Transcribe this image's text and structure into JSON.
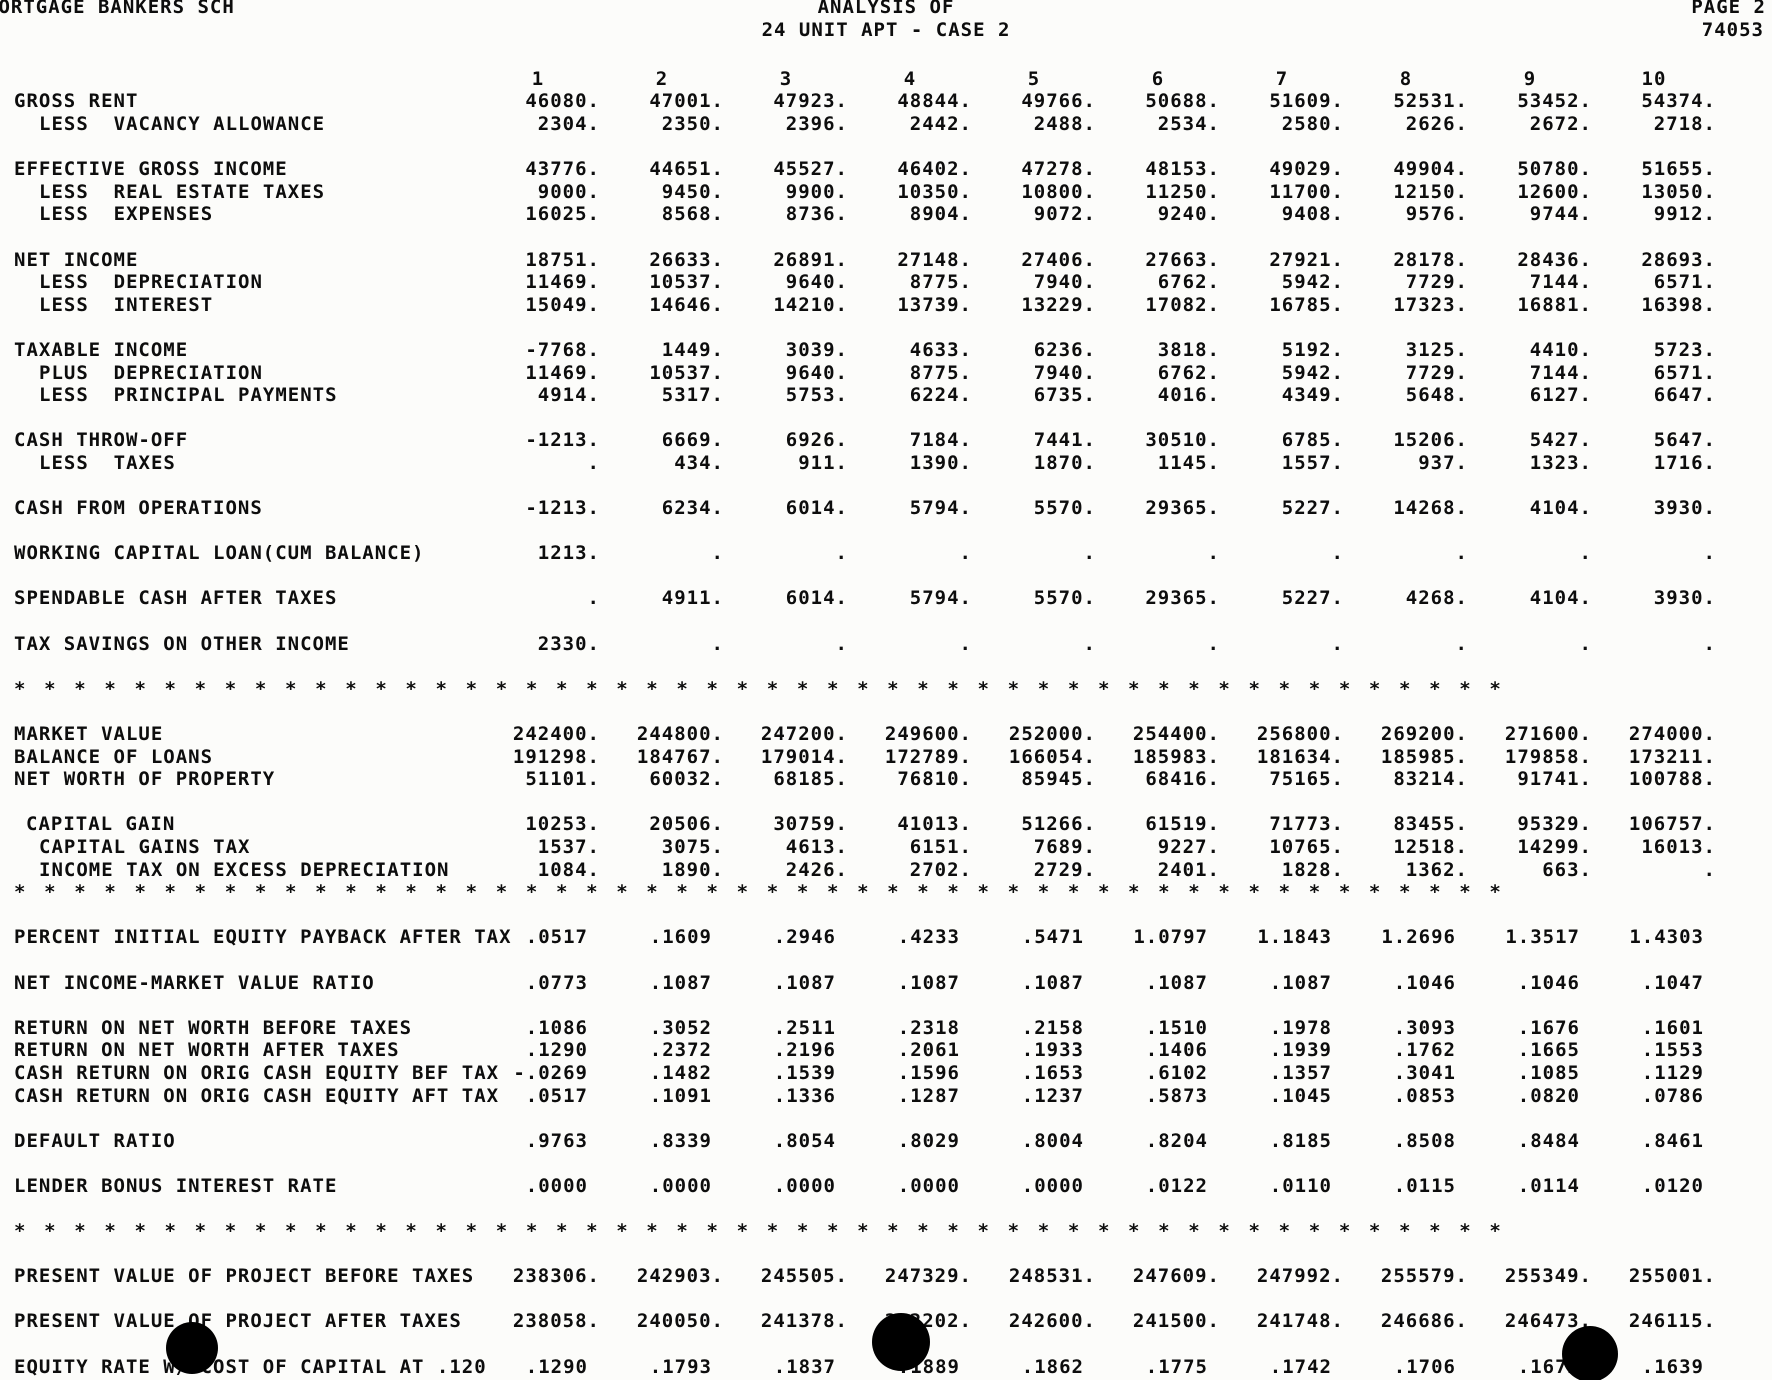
{
  "theme": {
    "paper": "#fcfcfa",
    "ink": "#0d0d0d",
    "blot": "#000000"
  },
  "header": {
    "organization": "MORTGAGE BANKERS SCH",
    "report_title": "ANALYSIS OF",
    "report_subtitle": "24 UNIT APT - CASE 2",
    "page_label": "PAGE 2",
    "job_number": "74053"
  },
  "report": {
    "columns": [
      "1",
      "2",
      "3",
      "4",
      "5",
      "6",
      "7",
      "8",
      "9",
      "10"
    ],
    "separator": {
      "glyph": "*",
      "count": 50
    },
    "rows": [
      {
        "type": "columns"
      },
      {
        "label": "GROSS RENT",
        "indent": 0,
        "values": [
          "46080.",
          "47001.",
          "47923.",
          "48844.",
          "49766.",
          "50688.",
          "51609.",
          "52531.",
          "53452.",
          "54374."
        ]
      },
      {
        "label": "LESS  VACANCY ALLOWANCE",
        "indent": 2,
        "values": [
          "2304.",
          "2350.",
          "2396.",
          "2442.",
          "2488.",
          "2534.",
          "2580.",
          "2626.",
          "2672.",
          "2718."
        ]
      },
      {
        "type": "blank"
      },
      {
        "label": "EFFECTIVE GROSS INCOME",
        "indent": 0,
        "values": [
          "43776.",
          "44651.",
          "45527.",
          "46402.",
          "47278.",
          "48153.",
          "49029.",
          "49904.",
          "50780.",
          "51655."
        ]
      },
      {
        "label": "LESS  REAL ESTATE TAXES",
        "indent": 2,
        "values": [
          "9000.",
          "9450.",
          "9900.",
          "10350.",
          "10800.",
          "11250.",
          "11700.",
          "12150.",
          "12600.",
          "13050."
        ]
      },
      {
        "label": "LESS  EXPENSES",
        "indent": 2,
        "values": [
          "16025.",
          "8568.",
          "8736.",
          "8904.",
          "9072.",
          "9240.",
          "9408.",
          "9576.",
          "9744.",
          "9912."
        ]
      },
      {
        "type": "blank"
      },
      {
        "label": "NET INCOME",
        "indent": 0,
        "values": [
          "18751.",
          "26633.",
          "26891.",
          "27148.",
          "27406.",
          "27663.",
          "27921.",
          "28178.",
          "28436.",
          "28693."
        ]
      },
      {
        "label": "LESS  DEPRECIATION",
        "indent": 2,
        "values": [
          "11469.",
          "10537.",
          "9640.",
          "8775.",
          "7940.",
          "6762.",
          "5942.",
          "7729.",
          "7144.",
          "6571."
        ]
      },
      {
        "label": "LESS  INTEREST",
        "indent": 2,
        "values": [
          "15049.",
          "14646.",
          "14210.",
          "13739.",
          "13229.",
          "17082.",
          "16785.",
          "17323.",
          "16881.",
          "16398."
        ]
      },
      {
        "type": "blank"
      },
      {
        "label": "TAXABLE INCOME",
        "indent": 0,
        "values": [
          "-7768.",
          "1449.",
          "3039.",
          "4633.",
          "6236.",
          "3818.",
          "5192.",
          "3125.",
          "4410.",
          "5723."
        ]
      },
      {
        "label": "PLUS  DEPRECIATION",
        "indent": 2,
        "values": [
          "11469.",
          "10537.",
          "9640.",
          "8775.",
          "7940.",
          "6762.",
          "5942.",
          "7729.",
          "7144.",
          "6571."
        ]
      },
      {
        "label": "LESS  PRINCIPAL PAYMENTS",
        "indent": 2,
        "values": [
          "4914.",
          "5317.",
          "5753.",
          "6224.",
          "6735.",
          "4016.",
          "4349.",
          "5648.",
          "6127.",
          "6647."
        ]
      },
      {
        "type": "blank"
      },
      {
        "label": "CASH THROW-OFF",
        "indent": 0,
        "values": [
          "-1213.",
          "6669.",
          "6926.",
          "7184.",
          "7441.",
          "30510.",
          "6785.",
          "15206.",
          "5427.",
          "5647."
        ]
      },
      {
        "label": "LESS  TAXES",
        "indent": 2,
        "values": [
          ".",
          "434.",
          "911.",
          "1390.",
          "1870.",
          "1145.",
          "1557.",
          "937.",
          "1323.",
          "1716."
        ]
      },
      {
        "type": "blank"
      },
      {
        "label": "CASH FROM OPERATIONS",
        "indent": 0,
        "values": [
          "-1213.",
          "6234.",
          "6014.",
          "5794.",
          "5570.",
          "29365.",
          "5227.",
          "14268.",
          "4104.",
          "3930."
        ]
      },
      {
        "type": "blank"
      },
      {
        "label": "WORKING CAPITAL LOAN(CUM BALANCE)",
        "indent": 0,
        "values": [
          "1213.",
          ".",
          ".",
          ".",
          ".",
          ".",
          ".",
          ".",
          ".",
          "."
        ]
      },
      {
        "type": "blank"
      },
      {
        "label": "SPENDABLE CASH AFTER TAXES",
        "indent": 0,
        "values": [
          ".",
          "4911.",
          "6014.",
          "5794.",
          "5570.",
          "29365.",
          "5227.",
          "4268.",
          "4104.",
          "3930."
        ]
      },
      {
        "type": "blank"
      },
      {
        "label": "TAX SAVINGS ON OTHER INCOME",
        "indent": 0,
        "values": [
          "2330.",
          ".",
          ".",
          ".",
          ".",
          ".",
          ".",
          ".",
          ".",
          "."
        ]
      },
      {
        "type": "blank"
      },
      {
        "type": "stars"
      },
      {
        "type": "blank"
      },
      {
        "label": "MARKET VALUE",
        "indent": 0,
        "values": [
          "242400.",
          "244800.",
          "247200.",
          "249600.",
          "252000.",
          "254400.",
          "256800.",
          "269200.",
          "271600.",
          "274000."
        ]
      },
      {
        "label": "BALANCE OF LOANS",
        "indent": 0,
        "values": [
          "191298.",
          "184767.",
          "179014.",
          "172789.",
          "166054.",
          "185983.",
          "181634.",
          "185985.",
          "179858.",
          "173211."
        ]
      },
      {
        "label": "NET WORTH OF PROPERTY",
        "indent": 0,
        "values": [
          "51101.",
          "60032.",
          "68185.",
          "76810.",
          "85945.",
          "68416.",
          "75165.",
          "83214.",
          "91741.",
          "100788."
        ]
      },
      {
        "type": "blank"
      },
      {
        "label": "CAPITAL GAIN",
        "indent": 1,
        "values": [
          "10253.",
          "20506.",
          "30759.",
          "41013.",
          "51266.",
          "61519.",
          "71773.",
          "83455.",
          "95329.",
          "106757."
        ]
      },
      {
        "label": "CAPITAL GAINS TAX",
        "indent": 2,
        "values": [
          "1537.",
          "3075.",
          "4613.",
          "6151.",
          "7689.",
          "9227.",
          "10765.",
          "12518.",
          "14299.",
          "16013."
        ]
      },
      {
        "label": "INCOME TAX ON EXCESS DEPRECIATION",
        "indent": 2,
        "values": [
          "1084.",
          "1890.",
          "2426.",
          "2702.",
          "2729.",
          "2401.",
          "1828.",
          "1362.",
          "663.",
          "."
        ]
      },
      {
        "type": "stars"
      },
      {
        "type": "blank"
      },
      {
        "label": "PERCENT INITIAL EQUITY PAYBACK AFTER TAX",
        "indent": 0,
        "values": [
          ".0517",
          ".1609",
          ".2946",
          ".4233",
          ".5471",
          "1.0797",
          "1.1843",
          "1.2696",
          "1.3517",
          "1.4303"
        ]
      },
      {
        "type": "blank"
      },
      {
        "label": "NET INCOME-MARKET VALUE RATIO",
        "indent": 0,
        "values": [
          ".0773",
          ".1087",
          ".1087",
          ".1087",
          ".1087",
          ".1087",
          ".1087",
          ".1046",
          ".1046",
          ".1047"
        ]
      },
      {
        "type": "blank"
      },
      {
        "label": "RETURN ON NET WORTH BEFORE TAXES",
        "indent": 0,
        "values": [
          ".1086",
          ".3052",
          ".2511",
          ".2318",
          ".2158",
          ".1510",
          ".1978",
          ".3093",
          ".1676",
          ".1601"
        ]
      },
      {
        "label": "RETURN ON NET WORTH AFTER TAXES",
        "indent": 0,
        "values": [
          ".1290",
          ".2372",
          ".2196",
          ".2061",
          ".1933",
          ".1406",
          ".1939",
          ".1762",
          ".1665",
          ".1553"
        ]
      },
      {
        "label": "CASH RETURN ON ORIG CASH EQUITY BEF TAX",
        "indent": 0,
        "values": [
          "-.0269",
          ".1482",
          ".1539",
          ".1596",
          ".1653",
          ".6102",
          ".1357",
          ".3041",
          ".1085",
          ".1129"
        ]
      },
      {
        "label": "CASH RETURN ON ORIG CASH EQUITY AFT TAX",
        "indent": 0,
        "values": [
          ".0517",
          ".1091",
          ".1336",
          ".1287",
          ".1237",
          ".5873",
          ".1045",
          ".0853",
          ".0820",
          ".0786"
        ]
      },
      {
        "type": "blank"
      },
      {
        "label": "DEFAULT RATIO",
        "indent": 0,
        "values": [
          ".9763",
          ".8339",
          ".8054",
          ".8029",
          ".8004",
          ".8204",
          ".8185",
          ".8508",
          ".8484",
          ".8461"
        ]
      },
      {
        "type": "blank"
      },
      {
        "label": "LENDER BONUS INTEREST RATE",
        "indent": 0,
        "values": [
          ".0000",
          ".0000",
          ".0000",
          ".0000",
          ".0000",
          ".0122",
          ".0110",
          ".0115",
          ".0114",
          ".0120"
        ]
      },
      {
        "type": "blank"
      },
      {
        "type": "stars"
      },
      {
        "type": "blank"
      },
      {
        "label": "PRESENT VALUE OF PROJECT BEFORE TAXES",
        "indent": 0,
        "values": [
          "238306.",
          "242903.",
          "245505.",
          "247329.",
          "248531.",
          "247609.",
          "247992.",
          "255579.",
          "255349.",
          "255001."
        ]
      },
      {
        "type": "blank"
      },
      {
        "label": "PRESENT VALUE OF PROJECT AFTER TAXES",
        "indent": 0,
        "values": [
          "238058.",
          "240050.",
          "241378.",
          "242202.",
          "242600.",
          "241500.",
          "241748.",
          "246686.",
          "246473.",
          "246115."
        ]
      },
      {
        "type": "blank"
      },
      {
        "label": "EQUITY RATE W/ COST OF CAPITAL AT .120",
        "indent": 0,
        "values": [
          ".1290",
          ".1793",
          ".1837",
          ".1889",
          ".1862",
          ".1775",
          ".1742",
          ".1706",
          ".1672",
          ".1639"
        ]
      }
    ]
  }
}
